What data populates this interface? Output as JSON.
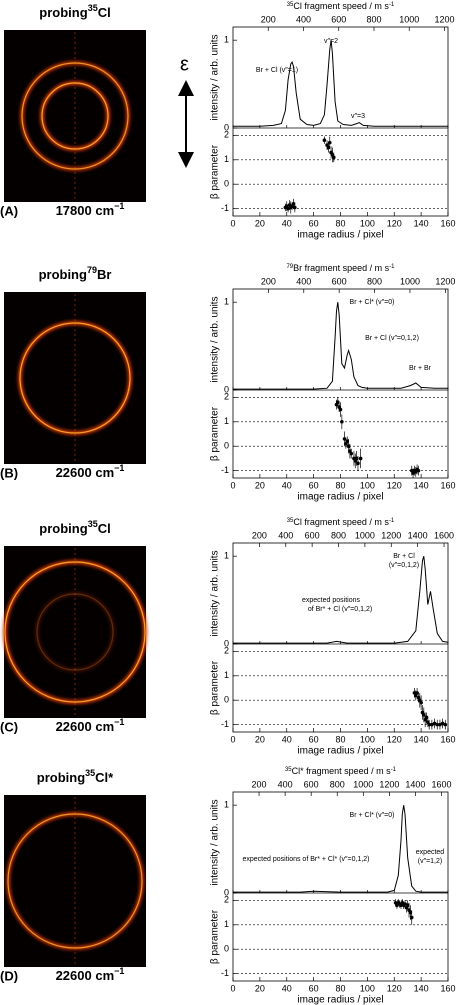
{
  "polarization_label": "ε",
  "panels": [
    {
      "probe": {
        "prefix": "probing",
        "isotope": "35",
        "element": "Cl"
      },
      "letter": "(A)",
      "wavenumber": "17800 cm",
      "wavenumber_exp": "−1"
    },
    {
      "probe": {
        "prefix": "probing",
        "isotope": "79",
        "element": "Br"
      },
      "letter": "(B)",
      "wavenumber": "22600 cm",
      "wavenumber_exp": "−1"
    },
    {
      "probe": {
        "prefix": "probing",
        "isotope": "35",
        "element": "Cl"
      },
      "letter": "(C)",
      "wavenumber": "22600 cm",
      "wavenumber_exp": "−1"
    },
    {
      "probe": {
        "prefix": "probing",
        "isotope": "35",
        "element": "Cl*"
      },
      "letter": "(D)",
      "wavenumber": "22600 cm",
      "wavenumber_exp": "−1"
    }
  ],
  "chart_data": [
    {
      "type": "line",
      "top_axis": {
        "isotope": "35",
        "label": "Cl fragment speed / m s",
        "exp": "-1",
        "lim": [
          0,
          1220
        ],
        "ticks": [
          200,
          400,
          600,
          800,
          1000,
          1200
        ]
      },
      "xlabel": "image radius / pixel",
      "xlim": [
        0,
        160
      ],
      "xticks": [
        0,
        20,
        40,
        60,
        80,
        100,
        120,
        140,
        160
      ],
      "intensity": {
        "ylabel": "intensity / arb. units",
        "ylim": [
          0,
          1.15
        ],
        "yticks": [
          0,
          1
        ],
        "color": "#000000",
        "x": [
          0,
          10,
          20,
          30,
          36,
          39,
          41,
          43,
          44,
          45,
          47,
          50,
          55,
          60,
          65,
          68,
          70,
          72,
          73,
          74,
          76,
          78,
          82,
          88,
          92,
          94,
          97,
          105,
          120,
          140,
          160
        ],
        "values": [
          0.02,
          0.02,
          0.02,
          0.03,
          0.05,
          0.2,
          0.55,
          0.73,
          0.75,
          0.7,
          0.4,
          0.1,
          0.04,
          0.03,
          0.05,
          0.15,
          0.5,
          0.9,
          1.0,
          0.85,
          0.3,
          0.08,
          0.04,
          0.03,
          0.05,
          0.06,
          0.03,
          0.02,
          0.02,
          0.02,
          0.02
        ],
        "annotations": [
          "Br + Cl (v″=1)",
          "v″=2",
          "v″=3"
        ]
      },
      "beta": {
        "type": "scatter",
        "ylabel": "β parameter",
        "ylim": [
          -1.3,
          2.3
        ],
        "yticks": [
          -1,
          0,
          1,
          2
        ],
        "grid": true,
        "color": "#000000",
        "x": [
          39,
          40,
          41,
          42,
          43,
          44,
          45,
          46,
          68,
          70,
          71,
          72,
          73,
          74,
          75
        ],
        "values": [
          -0.95,
          -0.9,
          -1.0,
          -0.85,
          -0.95,
          -0.9,
          -0.8,
          -0.95,
          1.8,
          1.6,
          1.5,
          1.7,
          1.3,
          1.2,
          1.1
        ],
        "errors": [
          0.15,
          0.2,
          0.15,
          0.2,
          0.25,
          0.15,
          0.2,
          0.2,
          0.15,
          0.2,
          0.2,
          0.25,
          0.25,
          0.3,
          0.2
        ]
      }
    },
    {
      "type": "line",
      "top_axis": {
        "isotope": "79",
        "label": "Br fragment speed / m s",
        "exp": "-1",
        "lim": [
          0,
          1215
        ],
        "ticks": [
          200,
          400,
          600,
          800,
          1000,
          1200
        ]
      },
      "xlabel": "image radius / pixel",
      "xlim": [
        0,
        160
      ],
      "xticks": [
        0,
        20,
        40,
        60,
        80,
        100,
        120,
        140,
        160
      ],
      "intensity": {
        "ylabel": "intensity / arb. units",
        "ylim": [
          0,
          1.15
        ],
        "yticks": [
          0,
          1
        ],
        "color": "#000000",
        "x": [
          0,
          20,
          40,
          60,
          70,
          74,
          76,
          77,
          78,
          79,
          81,
          83,
          85,
          86,
          88,
          90,
          93,
          96,
          100,
          110,
          125,
          132,
          136,
          140,
          150,
          160
        ],
        "values": [
          0.01,
          0.01,
          0.01,
          0.01,
          0.02,
          0.1,
          0.6,
          0.9,
          1.0,
          0.85,
          0.3,
          0.25,
          0.4,
          0.45,
          0.35,
          0.15,
          0.05,
          0.03,
          0.02,
          0.02,
          0.02,
          0.05,
          0.08,
          0.03,
          0.02,
          0.02
        ],
        "annotations": [
          "Br + Cl* (v″=0)",
          "Br + Cl (v″=0,1,2)",
          "Br + Br"
        ]
      },
      "beta": {
        "type": "scatter",
        "ylabel": "β parameter",
        "ylim": [
          -1.3,
          2.3
        ],
        "yticks": [
          -1,
          0,
          1,
          2
        ],
        "grid": true,
        "color": "#000000",
        "x": [
          77,
          78,
          79,
          80,
          81,
          83,
          84,
          85,
          86,
          87,
          88,
          90,
          91,
          92,
          93,
          95,
          133,
          134,
          135,
          136,
          137,
          138
        ],
        "values": [
          1.7,
          1.8,
          1.6,
          1.5,
          1.0,
          0.3,
          0.1,
          0.2,
          0.0,
          -0.2,
          -0.3,
          -0.5,
          -0.6,
          -0.5,
          -0.7,
          -0.5,
          -1.0,
          -1.1,
          -1.0,
          -1.05,
          -0.95,
          -1.0
        ],
        "errors": [
          0.2,
          0.2,
          0.2,
          0.3,
          0.3,
          0.3,
          0.2,
          0.2,
          0.3,
          0.3,
          0.2,
          0.3,
          0.3,
          0.3,
          0.3,
          0.4,
          0.2,
          0.2,
          0.2,
          0.2,
          0.2,
          0.2
        ]
      }
    },
    {
      "type": "line",
      "top_axis": {
        "isotope": "35",
        "label": "Cl fragment speed / m s",
        "exp": "-1",
        "lim": [
          0,
          1630
        ],
        "ticks": [
          200,
          400,
          600,
          800,
          1000,
          1200,
          1400,
          1600
        ]
      },
      "xlabel": "image radius / pixel",
      "xlim": [
        0,
        160
      ],
      "xticks": [
        0,
        20,
        40,
        60,
        80,
        100,
        120,
        140,
        160
      ],
      "intensity": {
        "ylabel": "intensity / arb. units",
        "ylim": [
          0,
          1.15
        ],
        "yticks": [
          0,
          1
        ],
        "color": "#000000",
        "x": [
          0,
          40,
          70,
          77,
          85,
          100,
          120,
          130,
          136,
          139,
          141,
          142,
          143,
          145,
          147,
          149,
          152,
          156,
          160
        ],
        "values": [
          0.01,
          0.01,
          0.01,
          0.03,
          0.01,
          0.01,
          0.01,
          0.03,
          0.15,
          0.6,
          0.95,
          1.0,
          0.85,
          0.45,
          0.6,
          0.4,
          0.12,
          0.03,
          0.02
        ],
        "annotations": [
          "Br + Cl",
          "(v″=0,1,2)",
          "expected positions",
          "of Br* + Cl (v″=0,1,2)"
        ]
      },
      "beta": {
        "type": "scatter",
        "ylabel": "β parameter",
        "ylim": [
          -1.3,
          2.3
        ],
        "yticks": [
          -1,
          0,
          1,
          2
        ],
        "grid": true,
        "color": "#000000",
        "x": [
          135,
          136,
          137,
          138,
          139,
          140,
          141,
          142,
          143,
          144,
          145,
          146,
          148,
          150,
          152,
          154,
          156,
          158
        ],
        "values": [
          0.3,
          0.2,
          0.3,
          0.1,
          0.0,
          -0.1,
          -0.5,
          -0.6,
          -0.8,
          -0.7,
          -0.9,
          -1.0,
          -1.0,
          -0.95,
          -1.0,
          -1.0,
          -0.95,
          -1.0
        ],
        "errors": [
          0.2,
          0.2,
          0.2,
          0.2,
          0.3,
          0.3,
          0.3,
          0.3,
          0.3,
          0.2,
          0.2,
          0.2,
          0.2,
          0.2,
          0.2,
          0.2,
          0.2,
          0.2
        ]
      }
    },
    {
      "type": "line",
      "top_axis": {
        "isotope": "35",
        "label": "Cl* fragment speed / m s",
        "exp": "-1",
        "lim": [
          0,
          1650
        ],
        "ticks": [
          200,
          400,
          600,
          800,
          1000,
          1200,
          1400,
          1600
        ]
      },
      "xlabel": "image radius / pixel",
      "xlim": [
        0,
        160
      ],
      "xticks": [
        0,
        20,
        40,
        60,
        80,
        100,
        120,
        140,
        160
      ],
      "intensity": {
        "ylabel": "intensity / arb. units",
        "ylim": [
          0,
          1.15
        ],
        "yticks": [
          0,
          1
        ],
        "color": "#000000",
        "x": [
          0,
          50,
          60,
          80,
          100,
          115,
          120,
          123,
          125,
          126,
          127,
          128,
          130,
          133,
          136,
          140,
          150,
          160
        ],
        "values": [
          0.01,
          0.01,
          0.02,
          0.01,
          0.01,
          0.01,
          0.03,
          0.2,
          0.6,
          0.9,
          1.0,
          0.9,
          0.4,
          0.08,
          0.02,
          0.01,
          0.01,
          0.01
        ],
        "annotations": [
          "Br + Cl* (v″=0)",
          "expected positions of Br* + Cl* (v″=0,1,2)",
          "expected",
          "(v″=1,2)"
        ]
      },
      "beta": {
        "type": "scatter",
        "ylabel": "β parameter",
        "ylim": [
          -1.3,
          2.3
        ],
        "yticks": [
          -1,
          0,
          1,
          2
        ],
        "grid": true,
        "color": "#000000",
        "x": [
          121,
          122,
          123,
          124,
          125,
          126,
          127,
          128,
          129,
          130,
          131,
          132,
          133
        ],
        "values": [
          1.9,
          1.8,
          1.9,
          1.85,
          1.8,
          1.9,
          1.8,
          1.85,
          1.7,
          1.8,
          1.6,
          1.5,
          1.3
        ],
        "errors": [
          0.15,
          0.15,
          0.15,
          0.15,
          0.15,
          0.15,
          0.15,
          0.15,
          0.2,
          0.2,
          0.3,
          0.3,
          0.3
        ]
      }
    }
  ]
}
